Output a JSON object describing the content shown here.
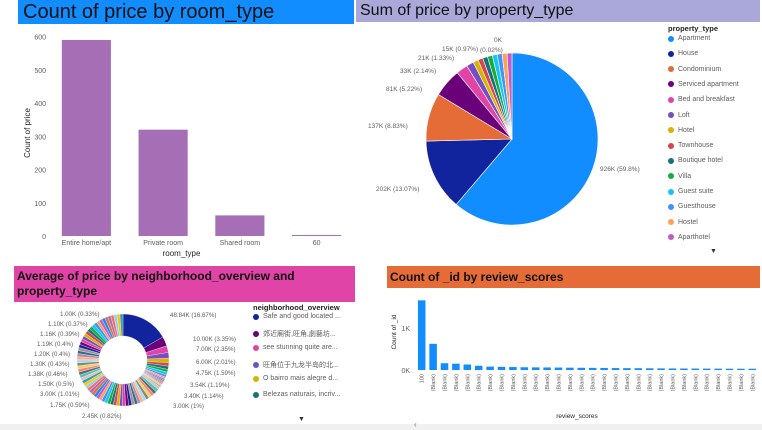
{
  "colors": {
    "blue_title": "#118dff",
    "lavender_title": "#a9a8d9",
    "pink_title": "#e044a7",
    "orange_title": "#e66c37",
    "purple_bar": "#a66fb5",
    "blue_bar": "#118dff"
  },
  "panels": {
    "room": {
      "title": "Count of price by room_type"
    },
    "property": {
      "title": "Sum of price by property_type",
      "legend_title": "property_type"
    },
    "neigh": {
      "title_line1": "Average of price by neighborhood_overview and",
      "title_line2": "property_type",
      "legend_title": "neighborhood_overview"
    },
    "review": {
      "title": "Count of _id by review_scores"
    }
  },
  "chart_data": [
    {
      "type": "bar",
      "title": "Count of price by room_type",
      "xlabel": "room_type",
      "ylabel": "Count of price",
      "categories": [
        "Entire home/apt",
        "Private room",
        "Shared room",
        "60"
      ],
      "values": [
        590,
        320,
        62,
        3
      ],
      "yticks": [
        "0",
        "100",
        "200",
        "300",
        "400",
        "500",
        "600"
      ],
      "ylim": [
        0,
        620
      ],
      "color": "#a66fb5"
    },
    {
      "type": "pie",
      "title": "Sum of price by property_type",
      "legend": [
        "Apartment",
        "House",
        "Condominium",
        "Serviced apartment",
        "Bed and breakfast",
        "Loft",
        "Hotel",
        "Townhouse",
        "Boutique hotel",
        "Villa",
        "Guest suite",
        "Guesthouse",
        "Hostel",
        "Aparthotel"
      ],
      "slices": [
        {
          "label": "926K (59.8%)",
          "value": 59.8,
          "color": "#118dff"
        },
        {
          "label": "202K (13.07%)",
          "value": 13.07,
          "color": "#12239e"
        },
        {
          "label": "137K (8.83%)",
          "value": 8.83,
          "color": "#e66c37"
        },
        {
          "label": "81K (5.22%)",
          "value": 5.22,
          "color": "#6b007b"
        },
        {
          "label": "33K (2.14%)",
          "value": 2.14,
          "color": "#e044a7"
        },
        {
          "label": "21K (1.33%)",
          "value": 1.33,
          "color": "#744ec2"
        },
        {
          "label": "15K (0.97%)",
          "value": 0.97,
          "color": "#d9b300"
        },
        {
          "label": "(0.02%)",
          "value": 0.9,
          "color": "#d64550"
        },
        {
          "label": "",
          "value": 0.9,
          "color": "#197278"
        },
        {
          "label": "",
          "value": 0.9,
          "color": "#1aab40"
        },
        {
          "label": "",
          "value": 0.9,
          "color": "#15c6f4"
        },
        {
          "label": "",
          "value": 0.9,
          "color": "#4092ff"
        },
        {
          "label": "",
          "value": 0.9,
          "color": "#ffa058"
        },
        {
          "label": "0K",
          "value": 0.9,
          "color": "#be5dc9"
        }
      ]
    },
    {
      "type": "pie",
      "title": "Average of price by neighborhood_overview and property_type",
      "legend": [
        "Safe and good located ...",
        "郊近廟街,旺角,劇藝坊...",
        "see stunning quite are...",
        "旺角位于九龙半岛的北...",
        "O bairro mais alegre d...",
        "Belezas naturais, incriv..."
      ],
      "labels_right": [
        "48.84K (16.67%)",
        "10.00K (3.35%)",
        "7.00K (2.35%)",
        "6.00K (2.01%)",
        "4.75K (1.59%)",
        "3.54K (1.19%)",
        "3.40K (1.14%)",
        "3.00K (1%)"
      ],
      "labels_left": [
        "1.00K (0.33%)",
        "1.10K (0.37%)",
        "1.16K (0.39%)",
        "1.19K (0.4%)",
        "1.20K (0.4%)",
        "1.30K (0.43%)",
        "1.38K (0.46%)",
        "1.50K (0.5%)",
        "3.00K (1.01%)",
        "1.75K (0.59%)",
        "2.45K (0.82%)"
      ],
      "values": [
        16.67,
        3.35,
        2.35,
        2.01,
        1.59,
        1.19,
        1.14,
        1.0,
        1.01,
        0.82,
        0.59,
        0.5,
        0.46,
        0.43,
        0.4,
        0.4,
        0.39,
        0.37,
        0.33
      ]
    },
    {
      "type": "bar",
      "title": "Count of _id by review_scores",
      "xlabel": "review_scores",
      "ylabel": "Count of _id",
      "yticks": [
        "0K",
        "1K"
      ],
      "first_category": "100",
      "repeated_category": "(Blank)",
      "values": [
        1650,
        620,
        160,
        150,
        130,
        100,
        80,
        75,
        70,
        65,
        62,
        60,
        58,
        55,
        52,
        50,
        48,
        46,
        44,
        42,
        40,
        38,
        36,
        35,
        34,
        33,
        32,
        31,
        30,
        30
      ],
      "color": "#118dff"
    }
  ]
}
